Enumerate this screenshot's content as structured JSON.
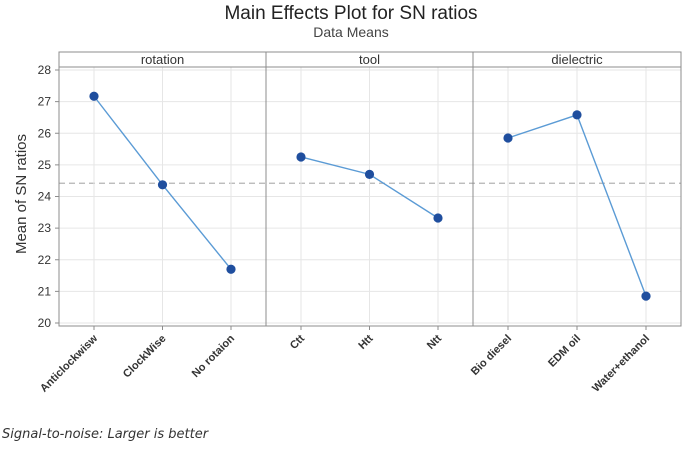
{
  "chart_data": {
    "type": "line",
    "title": "Main Effects Plot for SN ratios",
    "subtitle": "Data Means",
    "ylabel": "Mean of SN ratios",
    "ylim": [
      20,
      28
    ],
    "yticks": [
      20,
      21,
      22,
      23,
      24,
      25,
      26,
      27,
      28
    ],
    "grand_mean": 24.42,
    "panels": [
      {
        "factor": "rotation",
        "categories": [
          "Anticlockwisw",
          "ClockWise",
          "No rotaion"
        ],
        "values": [
          27.17,
          24.37,
          21.7
        ]
      },
      {
        "factor": "tool",
        "categories": [
          "Ctt",
          "Htt",
          "Ntt"
        ],
        "values": [
          25.25,
          24.7,
          23.32
        ]
      },
      {
        "factor": "dielectric",
        "categories": [
          "Bio diesel",
          "EDM oil",
          "Water+ethanol"
        ],
        "values": [
          25.85,
          26.58,
          20.85
        ]
      }
    ],
    "colors": {
      "line": "#5b9bd5",
      "marker": "#1f4e9e",
      "grid": "#e6e6e6",
      "reference": "#b4b4b4",
      "frame": "#8c8c8c"
    }
  },
  "footnote": "Signal-to-noise: Larger is better"
}
